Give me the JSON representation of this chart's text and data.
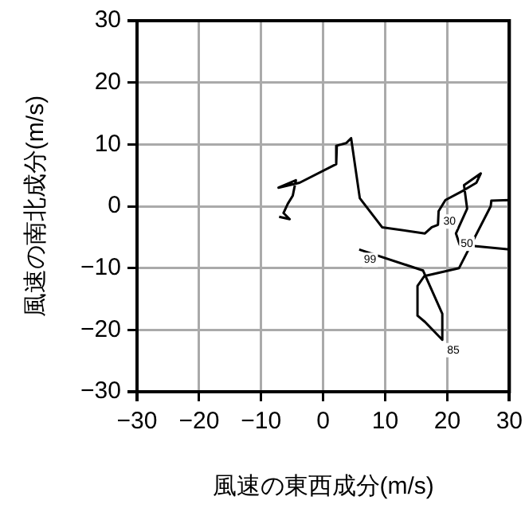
{
  "chart_data": {
    "type": "line",
    "xlabel": "風速の東西成分(m/s)",
    "ylabel": "風速の南北成分(m/s)",
    "xlim": [
      -30,
      30
    ],
    "ylim": [
      -30,
      30
    ],
    "xticks": [
      {
        "value": -30,
        "label": "−30"
      },
      {
        "value": -20,
        "label": "−20"
      },
      {
        "value": -10,
        "label": "−10"
      },
      0,
      10,
      20,
      30
    ],
    "yticks": [
      {
        "value": -30,
        "label": "−30"
      },
      {
        "value": -20,
        "label": "−20"
      },
      {
        "value": -10,
        "label": "−10"
      },
      0,
      10,
      20,
      30
    ],
    "grid": true,
    "legend": false,
    "marker": "none",
    "line_style": "solid",
    "series": [
      {
        "color": "#000000",
        "x": [
          5.8,
          16.1,
          19.2,
          19.2,
          16.4,
          15.2,
          15.2,
          16.3,
          21.9,
          27,
          27.1,
          30,
          30,
          22,
          21.4,
          23.2,
          22.7,
          25.4,
          24.7,
          22.7,
          19.7,
          18.6,
          18.5,
          17.5,
          16.4,
          9.5,
          5.9,
          4.5,
          3.7,
          2.2,
          2.1,
          -3.8,
          -7.2,
          -4.4,
          -4.9,
          -5.7,
          -6.4,
          -5.4,
          -7.1
        ],
        "values": [
          -7,
          -10.4,
          -17.4,
          -21.6,
          -18.7,
          -17.7,
          -12.9,
          -11.3,
          -10,
          0,
          0.9,
          1,
          -7,
          -6.2,
          -4.4,
          -0.4,
          3.4,
          5.3,
          3.8,
          2.6,
          1,
          -0.8,
          -3,
          -3.4,
          -4.4,
          -3.4,
          1.3,
          11,
          10.2,
          9.8,
          6.8,
          3.8,
          3,
          4.2,
          1.7,
          0.4,
          -1.1,
          -2.1,
          -1.7
        ]
      }
    ],
    "annotations": [
      {
        "text": "99",
        "x": 5.8,
        "y": -7
      },
      {
        "text": "85",
        "x": 19.2,
        "y": -21.6
      },
      {
        "text": "50",
        "x": 21.4,
        "y": -4.4
      },
      {
        "text": "30",
        "x": 18.6,
        "y": -0.8
      }
    ]
  }
}
